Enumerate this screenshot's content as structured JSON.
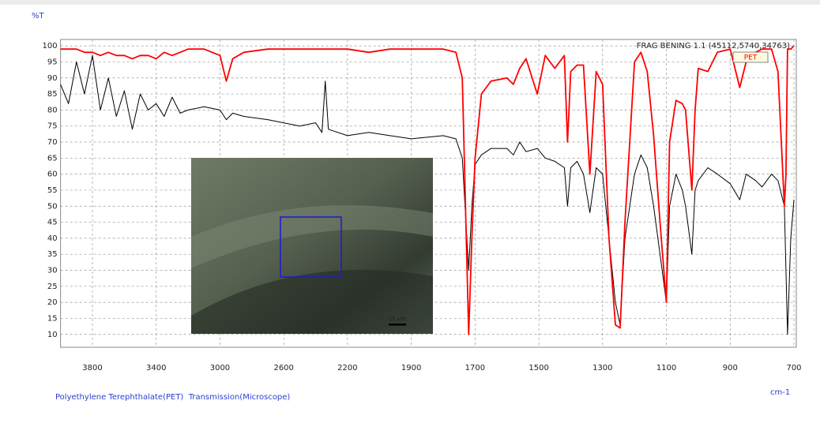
{
  "chart_data": {
    "type": "line",
    "y_axis_label": "%T",
    "x_axis_label": "cm-1",
    "footer": "Polyethylene Terephthalate(PET)  Transmission(Microscope)",
    "inset_scale_label": "25 µm",
    "xlim": [
      4000,
      700
    ],
    "xticks": [
      3800,
      3400,
      3000,
      2600,
      2200,
      1900,
      1700,
      1500,
      1300,
      1100,
      900,
      700
    ],
    "ylim": [
      6,
      102
    ],
    "yticks": [
      10,
      15,
      20,
      25,
      30,
      35,
      40,
      45,
      50,
      55,
      60,
      65,
      70,
      75,
      80,
      85,
      90,
      95,
      100
    ],
    "grid": true,
    "x": [
      4000,
      3950,
      3900,
      3850,
      3800,
      3750,
      3700,
      3650,
      3600,
      3550,
      3500,
      3450,
      3400,
      3350,
      3300,
      3250,
      3200,
      3100,
      3000,
      2960,
      2920,
      2850,
      2700,
      2500,
      2400,
      2360,
      2340,
      2320,
      2200,
      2100,
      2000,
      1900,
      1800,
      1760,
      1740,
      1720,
      1710,
      1700,
      1680,
      1650,
      1600,
      1580,
      1560,
      1540,
      1505,
      1480,
      1450,
      1420,
      1410,
      1400,
      1380,
      1360,
      1340,
      1320,
      1300,
      1280,
      1260,
      1245,
      1230,
      1200,
      1180,
      1160,
      1140,
      1120,
      1100,
      1090,
      1070,
      1050,
      1040,
      1020,
      1010,
      1000,
      970,
      940,
      900,
      870,
      850,
      820,
      800,
      770,
      750,
      730,
      725,
      720,
      710,
      700
    ],
    "series": [
      {
        "name": "FRAG BENING 1.1 (45112,5740,34763)",
        "color": "#000000",
        "values": [
          88,
          82,
          95,
          85,
          97,
          80,
          90,
          78,
          86,
          74,
          85,
          80,
          82,
          78,
          84,
          79,
          80,
          81,
          80,
          77,
          79,
          78,
          77,
          75,
          76,
          73,
          89,
          74,
          72,
          73,
          72,
          71,
          72,
          71,
          65,
          30,
          50,
          63,
          66,
          68,
          68,
          66,
          70,
          67,
          68,
          65,
          64,
          62,
          50,
          62,
          64,
          60,
          48,
          62,
          60,
          40,
          20,
          13,
          40,
          60,
          66,
          62,
          50,
          35,
          20,
          50,
          60,
          55,
          50,
          35,
          55,
          58,
          62,
          60,
          57,
          52,
          60,
          58,
          56,
          60,
          58,
          50,
          30,
          10,
          40,
          52
        ]
      },
      {
        "name": "PET",
        "color": "#ff0000",
        "values": [
          99,
          99,
          99,
          98,
          98,
          97,
          98,
          97,
          97,
          96,
          97,
          97,
          96,
          98,
          97,
          98,
          99,
          99,
          97,
          89,
          96,
          98,
          99,
          99,
          99,
          99,
          99,
          99,
          99,
          98,
          99,
          99,
          99,
          98,
          90,
          10,
          40,
          65,
          85,
          89,
          90,
          88,
          93,
          96,
          85,
          97,
          93,
          97,
          70,
          92,
          94,
          94,
          60,
          92,
          88,
          40,
          13,
          12,
          45,
          95,
          98,
          92,
          72,
          45,
          20,
          70,
          83,
          82,
          80,
          55,
          80,
          93,
          92,
          98,
          99,
          87,
          95,
          98,
          99,
          99,
          92,
          50,
          60,
          99,
          99,
          100
        ]
      }
    ]
  }
}
